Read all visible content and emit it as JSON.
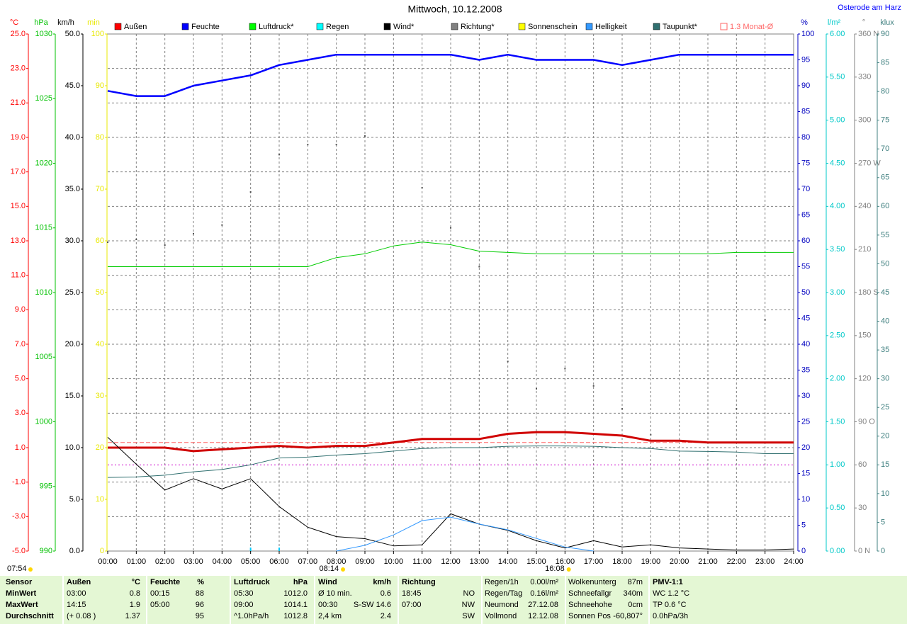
{
  "chart_data": {
    "type": "line",
    "title": "Mittwoch, 10.12.2008",
    "location": "Osterode am Harz",
    "xlim": [
      0,
      24
    ],
    "x": [
      0,
      1,
      2,
      3,
      4,
      5,
      6,
      7,
      8,
      9,
      10,
      11,
      12,
      13,
      14,
      15,
      16,
      17,
      18,
      19,
      20,
      21,
      22,
      23,
      24
    ],
    "xticks": [
      {
        "value": 0,
        "label": "00:00"
      },
      {
        "value": 1,
        "label": "01:00"
      },
      {
        "value": 2,
        "label": "02:00"
      },
      {
        "value": 3,
        "label": "03:00"
      },
      {
        "value": 4,
        "label": "04:00"
      },
      {
        "value": 5,
        "label": "05:00"
      },
      {
        "value": 6,
        "label": "06:00"
      },
      {
        "value": 7,
        "label": "07:00"
      },
      {
        "value": 8,
        "label": "08:00"
      },
      {
        "value": 9,
        "label": "09:00"
      },
      {
        "value": 10,
        "label": "10:00"
      },
      {
        "value": 11,
        "label": "11:00"
      },
      {
        "value": 12,
        "label": "12:00"
      },
      {
        "value": 13,
        "label": "13:00"
      },
      {
        "value": 14,
        "label": "14:00"
      },
      {
        "value": 15,
        "label": "15:00"
      },
      {
        "value": 16,
        "label": "16:00"
      },
      {
        "value": 17,
        "label": "17:00"
      },
      {
        "value": 18,
        "label": "18:00"
      },
      {
        "value": 19,
        "label": "19:00"
      },
      {
        "value": 20,
        "label": "20:00"
      },
      {
        "value": 21,
        "label": "21:00"
      },
      {
        "value": 22,
        "label": "22:00"
      },
      {
        "value": 23,
        "label": "23:00"
      },
      {
        "value": 24,
        "label": "24:00"
      }
    ],
    "grid": true,
    "axes": [
      {
        "unit": "°C",
        "side": "left",
        "color": "#ff0000",
        "lim": [
          -5,
          25
        ],
        "ticks": [
          {
            "value": -5,
            "label": "-5.0"
          },
          {
            "value": -3,
            "label": "-3.0"
          },
          {
            "value": -1,
            "label": "-1.0"
          },
          {
            "value": 1,
            "label": "1.0"
          },
          {
            "value": 3,
            "label": "3.0"
          },
          {
            "value": 5,
            "label": "5.0"
          },
          {
            "value": 7,
            "label": "7.0"
          },
          {
            "value": 9,
            "label": "9.0"
          },
          {
            "value": 11,
            "label": "11.0"
          },
          {
            "value": 13,
            "label": "13.0"
          },
          {
            "value": 15,
            "label": "15.0"
          },
          {
            "value": 17,
            "label": "17.0"
          },
          {
            "value": 19,
            "label": "19.0"
          },
          {
            "value": 21,
            "label": "21.0"
          },
          {
            "value": 23,
            "label": "23.0"
          },
          {
            "value": 25,
            "label": "25.0"
          }
        ]
      },
      {
        "unit": "hPa",
        "side": "left",
        "color": "#00c000",
        "lim": [
          990,
          1030
        ],
        "ticks": [
          990,
          995,
          1000,
          1005,
          1010,
          1015,
          1020,
          1025,
          1030
        ]
      },
      {
        "unit": "km/h",
        "side": "left",
        "color": "#000000",
        "lim": [
          0,
          50
        ],
        "ticks": [
          {
            "value": 0,
            "label": "0.0"
          },
          {
            "value": 5,
            "label": "5.0"
          },
          {
            "value": 10,
            "label": "10.0"
          },
          {
            "value": 15,
            "label": "15.0"
          },
          {
            "value": 20,
            "label": "20.0"
          },
          {
            "value": 25,
            "label": "25.0"
          },
          {
            "value": 30,
            "label": "30.0"
          },
          {
            "value": 35,
            "label": "35.0"
          },
          {
            "value": 40,
            "label": "40.0"
          },
          {
            "value": 45,
            "label": "45.0"
          },
          {
            "value": 50,
            "label": "50.0"
          }
        ]
      },
      {
        "unit": "min",
        "side": "left",
        "color": "#e8e800",
        "lim": [
          0,
          100
        ],
        "ticks": [
          0,
          10,
          20,
          30,
          40,
          50,
          60,
          70,
          80,
          90,
          100
        ]
      },
      {
        "unit": "%",
        "side": "right",
        "color": "#0000c0",
        "lim": [
          0,
          100
        ],
        "ticks": [
          0,
          5,
          10,
          15,
          20,
          25,
          30,
          35,
          40,
          45,
          50,
          55,
          60,
          65,
          70,
          75,
          80,
          85,
          90,
          95,
          100
        ]
      },
      {
        "unit": "l/m²",
        "side": "right",
        "color": "#00c8c8",
        "lim": [
          0,
          6
        ],
        "ticks": [
          {
            "value": 0,
            "label": "0.00"
          },
          {
            "value": 0.5,
            "label": "0.50"
          },
          {
            "value": 1,
            "label": "1.00"
          },
          {
            "value": 1.5,
            "label": "1.50"
          },
          {
            "value": 2,
            "label": "2.00"
          },
          {
            "value": 2.5,
            "label": "2.50"
          },
          {
            "value": 3,
            "label": "3.00"
          },
          {
            "value": 3.5,
            "label": "3.50"
          },
          {
            "value": 4,
            "label": "4.00"
          },
          {
            "value": 4.5,
            "label": "4.50"
          },
          {
            "value": 5,
            "label": "5.00"
          },
          {
            "value": 5.5,
            "label": "5.50"
          },
          {
            "value": 6,
            "label": "6.00"
          }
        ]
      },
      {
        "unit": "°",
        "side": "right",
        "color": "#808080",
        "lim": [
          0,
          360
        ],
        "ticks": [
          {
            "value": 0,
            "label": "0 N"
          },
          30,
          60,
          {
            "value": 90,
            "label": "90 O"
          },
          120,
          150,
          {
            "value": 180,
            "label": "180 S"
          },
          210,
          240,
          {
            "value": 270,
            "label": "270 W"
          },
          300,
          330,
          {
            "value": 360,
            "label": "360 N"
          }
        ]
      },
      {
        "unit": "klux",
        "side": "right",
        "color": "#408080",
        "lim": [
          0,
          90
        ],
        "ticks": [
          0,
          5,
          10,
          15,
          20,
          25,
          30,
          35,
          40,
          45,
          50,
          55,
          60,
          65,
          70,
          75,
          80,
          85,
          90
        ]
      }
    ],
    "series": [
      {
        "name": "Außen",
        "color": "#ff0000",
        "line_color": "#d00000",
        "width": 3,
        "axis": "°C",
        "mark": "line",
        "values": [
          1.0,
          1.0,
          1.0,
          0.8,
          0.9,
          1.0,
          1.1,
          1.0,
          1.1,
          1.1,
          1.3,
          1.5,
          1.5,
          1.5,
          1.8,
          1.9,
          1.9,
          1.8,
          1.7,
          1.4,
          1.4,
          1.3,
          1.3,
          1.3,
          1.3
        ]
      },
      {
        "name": "Feuchte",
        "color": "#0000ff",
        "line_color": "#0000ff",
        "width": 2.5,
        "axis": "%",
        "mark": "line",
        "values": [
          89,
          88,
          88,
          90,
          91,
          92,
          94,
          95,
          96,
          96,
          96,
          96,
          96,
          95,
          96,
          95,
          95,
          95,
          94,
          95,
          96,
          96,
          96,
          96,
          96
        ]
      },
      {
        "name": "Luftdruck*",
        "color": "#00ff00",
        "line_color": "#00cc00",
        "width": 1,
        "axis": "hPa",
        "mark": "line",
        "values": [
          1012.0,
          1012.0,
          1012.0,
          1012.0,
          1012.0,
          1012.0,
          1012.0,
          1012.0,
          1012.7,
          1013.0,
          1013.6,
          1013.9,
          1013.7,
          1013.2,
          1013.1,
          1013.0,
          1013.0,
          1013.0,
          1013.0,
          1013.0,
          1013.0,
          1013.0,
          1013.1,
          1013.1,
          1013.1
        ]
      },
      {
        "name": "Regen",
        "color": "#00ffff",
        "line_color": "#00ccff",
        "width": 2,
        "axis": "l/m²",
        "mark": "bar",
        "values": [
          0,
          0,
          0,
          0,
          0,
          0.04,
          0.04,
          0,
          0,
          0,
          0,
          0,
          0,
          0,
          0,
          0,
          0,
          0,
          0,
          0,
          0,
          0,
          0,
          0,
          0
        ]
      },
      {
        "name": "Wind*",
        "color": "#000000",
        "line_color": "#000000",
        "width": 1,
        "axis": "km/h",
        "mark": "line",
        "values": [
          11.0,
          8.4,
          5.9,
          7.0,
          6.0,
          7.0,
          4.3,
          2.3,
          1.4,
          1.2,
          0.5,
          0.6,
          3.6,
          2.6,
          2.0,
          1.0,
          0.3,
          1.0,
          0.4,
          0.6,
          0.3,
          0.2,
          0.1,
          0.1,
          0.2
        ]
      },
      {
        "name": "Richtung*",
        "color": "#808080",
        "line_color": "#505050",
        "width": 1,
        "axis": "°",
        "mark": "dot",
        "values": [
          215,
          217,
          213,
          221,
          227,
          250,
          276,
          283,
          283,
          289,
          null,
          253,
          225,
          198,
          132,
          113,
          127,
          115,
          99,
          81,
          null,
          null,
          99,
          161,
          null
        ]
      },
      {
        "name": "Sonnenschein",
        "color": "#ffff00",
        "line_color": "#e8e800",
        "width": 1,
        "axis": "min",
        "mark": "line",
        "values": [
          null,
          null,
          null,
          null,
          null,
          null,
          null,
          null,
          null,
          null,
          null,
          null,
          null,
          null,
          null,
          null,
          null,
          null,
          null,
          null,
          null,
          null,
          null,
          null,
          null
        ]
      },
      {
        "name": "Helligkeit",
        "color": "#3399ff",
        "line_color": "#3399ff",
        "width": 1,
        "axis": "klux",
        "mark": "line",
        "values": [
          null,
          null,
          null,
          null,
          null,
          null,
          null,
          null,
          0,
          1.0,
          2.8,
          5.3,
          5.9,
          4.7,
          3.7,
          2.2,
          0.7,
          0,
          null,
          null,
          null,
          null,
          null,
          null,
          null
        ]
      },
      {
        "name": "Taupunkt*",
        "color": "#2f6f6f",
        "line_color": "#2f6f6f",
        "width": 1,
        "axis": "°C",
        "mark": "line",
        "values": [
          -0.73,
          -0.7,
          -0.6,
          -0.4,
          -0.27,
          0.0,
          0.4,
          0.45,
          0.57,
          0.65,
          0.8,
          0.95,
          1.0,
          1.0,
          1.08,
          1.1,
          1.1,
          1.08,
          1.0,
          0.95,
          0.8,
          0.78,
          0.74,
          0.65,
          0.65
        ]
      }
    ],
    "monthly": {
      "label": "1.3 Monat-Ø",
      "value": 1.3,
      "axis": "°C",
      "color": "#ff6666"
    },
    "ref_line": {
      "value": 0.0,
      "axis": "°C",
      "color": "#cc00cc"
    },
    "sunrise_note": "07:54",
    "sun_marks": [
      {
        "value": 8.233,
        "label": "08:14"
      },
      {
        "value": 16.133,
        "label": "16:08"
      }
    ]
  },
  "stats": {
    "rows": [
      [
        "Sensor",
        "Außen",
        "°C",
        "Feuchte",
        "%",
        "Luftdruck",
        "hPa",
        "Wind",
        "km/h",
        "Richtung",
        null,
        "Regen/1h",
        "0.00l/m²",
        "Wolkenunterg",
        "87m",
        "PMV-1:1"
      ],
      [
        "MinWert",
        "03:00",
        "0.8",
        "00:15",
        "88",
        "05:30",
        "1012.0",
        "Ø 10 min.",
        "0.6",
        "18:45",
        "NO",
        "Regen/Tag",
        "0.16l/m²",
        "Schneefallgr",
        "340m",
        "WC 1.2 °C"
      ],
      [
        "MaxWert",
        "14:15",
        "1.9",
        "05:00",
        "96",
        "09:00",
        "1014.1",
        "00:30",
        "S-SW 14.6",
        "07:00",
        "NW",
        "Neumond",
        "27.12.08",
        "Schneehohe",
        "0cm",
        "TP 0.6 °C"
      ],
      [
        "Durchschnitt",
        "(+ 0.08 )",
        "1.37",
        null,
        "95",
        "^1.0hPa/h",
        "1012.8",
        "2,4 km",
        "2.4",
        null,
        "SW",
        "Vollmond",
        "12.12.08",
        "Sonnen Pos",
        "-60,807°",
        "0.0hPa/3h"
      ]
    ]
  }
}
